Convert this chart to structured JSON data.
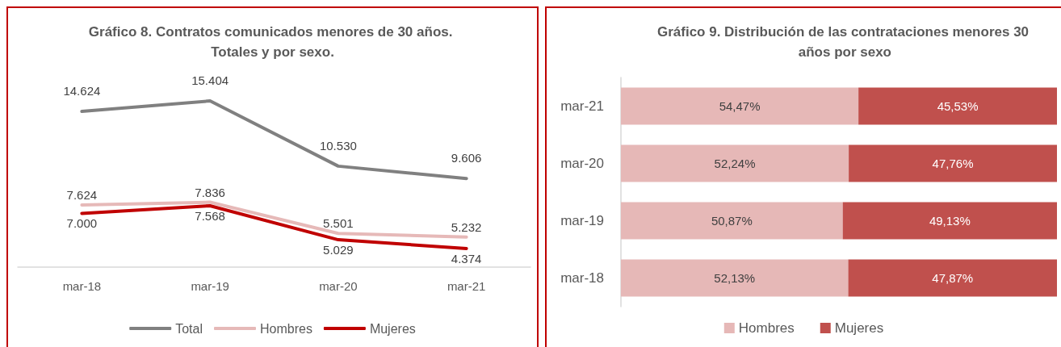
{
  "chart_data": [
    {
      "type": "line",
      "title": "Gráfico 8. Contratos comunicados menores de 30 años. Totales y por sexo.",
      "categories": [
        "mar-18",
        "mar-19",
        "mar-20",
        "mar-21"
      ],
      "series": [
        {
          "name": "Total",
          "color": "#808080",
          "values": [
            14624,
            15404,
            10530,
            9606
          ],
          "value_labels": [
            "14.624",
            "15.404",
            "10.530",
            "9.606"
          ]
        },
        {
          "name": "Hombres",
          "color": "#e6b9b8",
          "values": [
            7624,
            7836,
            5501,
            5232
          ],
          "value_labels": [
            "7.624",
            "7.836",
            "5.501",
            "5.232"
          ]
        },
        {
          "name": "Mujeres",
          "color": "#c00000",
          "values": [
            7000,
            7568,
            5029,
            4374
          ],
          "value_labels": [
            "7.000",
            "7.568",
            "5.029",
            "4.374"
          ]
        }
      ],
      "legend": "bottom",
      "marker": "none",
      "line_style": "solid"
    },
    {
      "type": "bar",
      "orientation": "horizontal",
      "stacked": true,
      "title": "Gráfico 9. Distribución de las contrataciones menores 30 años por sexo",
      "categories": [
        "mar-21",
        "mar-20",
        "mar-19",
        "mar-18"
      ],
      "series": [
        {
          "name": "Hombres",
          "color": "#e6b8b7",
          "values": [
            54.47,
            52.24,
            50.87,
            52.13
          ],
          "value_labels": [
            "54,47%",
            "52,24%",
            "50,87%",
            "52,13%"
          ]
        },
        {
          "name": "Mujeres",
          "color": "#c0504d",
          "values": [
            45.53,
            47.76,
            49.13,
            47.87
          ],
          "value_labels": [
            "45,53%",
            "47,76%",
            "49,13%",
            "47,87%"
          ]
        }
      ],
      "legend": "bottom"
    }
  ]
}
